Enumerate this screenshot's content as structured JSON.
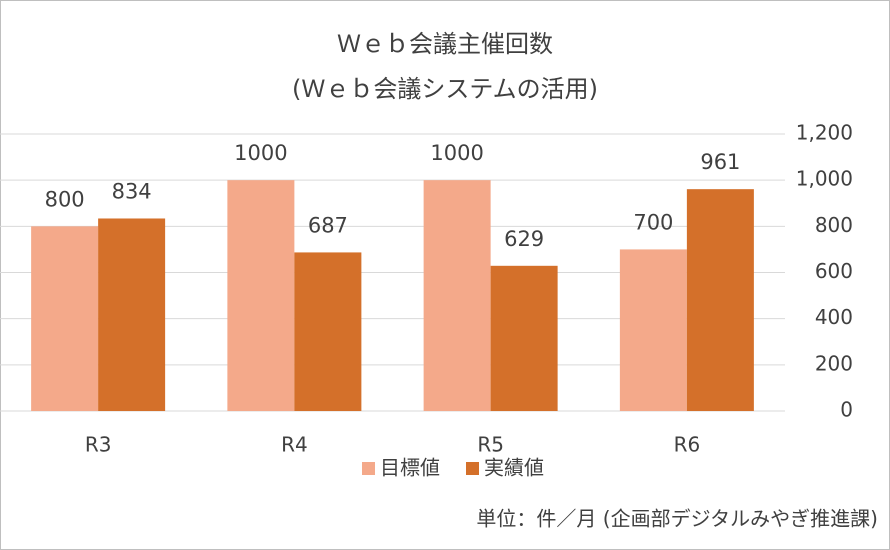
{
  "chart_data": {
    "type": "bar",
    "title": "Ｗｅｂ会議主催回数",
    "subtitle": "(Ｗｅｂ会議システムの活用)",
    "categories": [
      "R3",
      "R4",
      "R5",
      "R6"
    ],
    "series": [
      {
        "name": "目標値",
        "color": "#f4a98a",
        "values": [
          800,
          1000,
          1000,
          700
        ]
      },
      {
        "name": "実績値",
        "color": "#d4702a",
        "values": [
          834,
          687,
          629,
          961
        ]
      }
    ],
    "ylim": [
      0,
      1200
    ],
    "yticks": [
      0,
      200,
      400,
      600,
      800,
      {
        "value": 1000,
        "label": "1,000"
      },
      {
        "value": 1200,
        "label": "1,200"
      }
    ],
    "y_axis_side": "right",
    "grid": true,
    "legend": "bottom",
    "note": "単位：件／月 (企画部デジタルみやぎ推進課)"
  }
}
